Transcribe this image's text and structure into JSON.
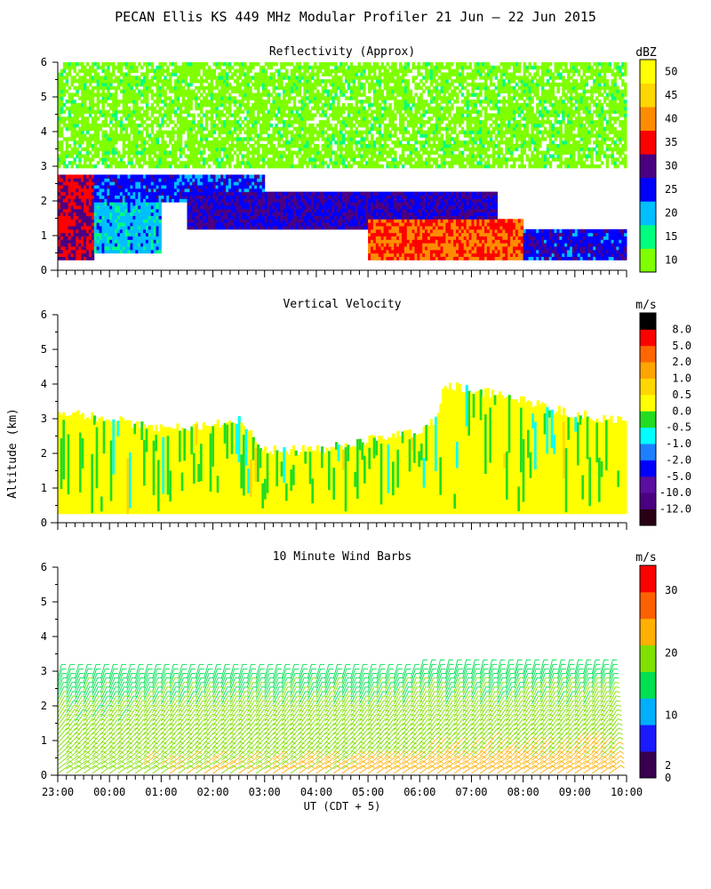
{
  "page_title": "PECAN Ellis KS 449 MHz Modular Profiler 21 Jun — 22 Jun 2015",
  "shared_ylabel": "Altitude (km)",
  "chart_data": [
    {
      "type": "heatmap",
      "title": "Reflectivity (Approx)",
      "units": "dBZ",
      "xlabel": "",
      "ylabel": "",
      "xlim_hours": [
        23,
        34
      ],
      "ylim_km": [
        0,
        6
      ],
      "yticks": [
        "0",
        "1",
        "2",
        "3",
        "4",
        "5",
        "6"
      ],
      "xticks": [],
      "colorbar": {
        "colors": [
          "#7fff00",
          "#00ff7f",
          "#00bfff",
          "#0000ff",
          "#4b0082",
          "#ff0000",
          "#ff8c00",
          "#ffd700",
          "#ffff00"
        ],
        "labels": [
          "10",
          "15",
          "20",
          "25",
          "30",
          "35",
          "40",
          "45",
          "50"
        ],
        "values": [
          10,
          15,
          20,
          25,
          30,
          35,
          40,
          45,
          50,
          55
        ]
      },
      "layers": [
        {
          "altitude_km": [
            0.3,
            2.8
          ],
          "t_start": 23.0,
          "t_end": 23.7,
          "dBZ": 35
        },
        {
          "altitude_km": [
            2.0,
            2.8
          ],
          "t_start": 23.0,
          "t_end": 27.0,
          "dBZ": 27
        },
        {
          "altitude_km": [
            0.5,
            2.0
          ],
          "t_start": 23.5,
          "t_end": 25.0,
          "dBZ": 22
        },
        {
          "altitude_km": [
            1.2,
            2.3
          ],
          "t_start": 25.5,
          "t_end": 31.5,
          "dBZ": 30
        },
        {
          "altitude_km": [
            0.3,
            1.5
          ],
          "t_start": 29.0,
          "t_end": 32.0,
          "dBZ": 40
        },
        {
          "altitude_km": [
            0.3,
            1.2
          ],
          "t_start": 31.5,
          "t_end": 34.0,
          "dBZ": 28
        },
        {
          "altitude_km": [
            3.0,
            6.0
          ],
          "t_start": 23.0,
          "t_end": 34.0,
          "dBZ": 12
        }
      ]
    },
    {
      "type": "heatmap",
      "title": "Vertical Velocity",
      "units": "m/s",
      "xlabel": "",
      "ylabel": "Altitude (km)",
      "xlim_hours": [
        23,
        34
      ],
      "ylim_km": [
        0,
        6
      ],
      "yticks": [
        "0",
        "1",
        "2",
        "3",
        "4",
        "5",
        "6"
      ],
      "xticks": [],
      "colorbar": {
        "colors": [
          "#2a0015",
          "#4b0082",
          "#5b0fa0",
          "#0000ff",
          "#1e7fff",
          "#00ffff",
          "#22dd22",
          "#ffff00",
          "#ffd700",
          "#ffa500",
          "#ff6600",
          "#ff0000",
          "#000000"
        ],
        "labels": [
          "-12.0",
          "-10.0",
          "-5.0",
          "-2.0",
          "-1.0",
          "-0.5",
          "0.0",
          "0.5",
          "1.0",
          "2.0",
          "5.0",
          "8.0"
        ]
      },
      "echo_top_km": [
        {
          "t": 23.0,
          "top": 3.2
        },
        {
          "t": 24.0,
          "top": 3.0
        },
        {
          "t": 25.0,
          "top": 2.7
        },
        {
          "t": 26.0,
          "top": 2.8
        },
        {
          "t": 26.5,
          "top": 3.0
        },
        {
          "t": 27.0,
          "top": 2.1
        },
        {
          "t": 28.0,
          "top": 2.1
        },
        {
          "t": 29.0,
          "top": 2.4
        },
        {
          "t": 30.0,
          "top": 2.6
        },
        {
          "t": 30.3,
          "top": 3.0
        },
        {
          "t": 30.5,
          "top": 4.0
        },
        {
          "t": 31.5,
          "top": 3.7
        },
        {
          "t": 32.5,
          "top": 3.3
        },
        {
          "t": 33.5,
          "top": 3.0
        },
        {
          "t": 34.0,
          "top": 2.9
        }
      ],
      "predominant_value_ms": 0.0
    },
    {
      "type": "wind_barbs",
      "title": "10 Minute Wind Barbs",
      "units": "m/s",
      "xlabel": "UT  (CDT + 5)",
      "ylabel": "",
      "xlim_hours": [
        23,
        34
      ],
      "ylim_km": [
        0,
        6
      ],
      "yticks": [
        "0",
        "1",
        "2",
        "3",
        "4",
        "5",
        "6"
      ],
      "xticks": [
        "23:00",
        "00:00",
        "01:00",
        "02:00",
        "03:00",
        "04:00",
        "05:00",
        "06:00",
        "07:00",
        "08:00",
        "09:00",
        "10:00"
      ],
      "colorbar": {
        "colors": [
          "#3a0050",
          "#1a1aff",
          "#00b0ff",
          "#00e050",
          "#80e000",
          "#ffb000",
          "#ff6000",
          "#ff0000"
        ],
        "labels": [
          "0",
          "2",
          "10",
          "20",
          "30"
        ],
        "values": [
          0,
          2,
          10,
          20,
          30
        ]
      },
      "speed_by_altitude_ms": [
        {
          "altitude_km": 0.25,
          "speed": 18
        },
        {
          "altitude_km": 0.75,
          "speed": 16
        },
        {
          "altitude_km": 1.25,
          "speed": 13
        },
        {
          "altitude_km": 1.75,
          "speed": 11
        },
        {
          "altitude_km": 2.25,
          "speed": 9
        },
        {
          "altitude_km": 2.75,
          "speed": 7
        }
      ],
      "late_period_boost_ms": 6
    }
  ]
}
